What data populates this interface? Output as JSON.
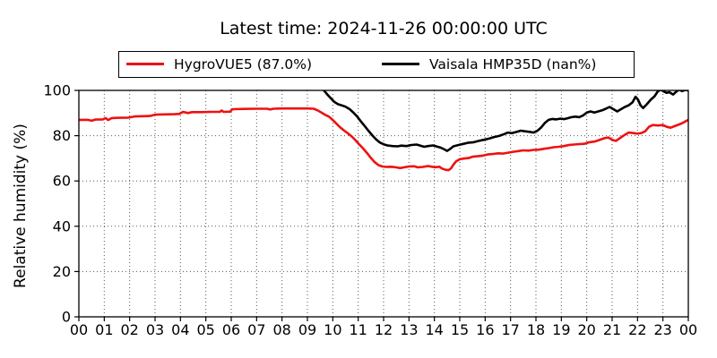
{
  "title": "Latest time: 2024-11-26 00:00:00 UTC",
  "legend": {
    "items": [
      {
        "label": "HygroVUE5 (87.0%)",
        "color": "#ee1111"
      },
      {
        "label": "Vaisala HMP35D (nan%)",
        "color": "#000000"
      }
    ]
  },
  "chart_data": {
    "type": "line",
    "title": "Latest time: 2024-11-26 00:00:00 UTC",
    "xlabel": "",
    "ylabel": "Relative humidity (%)",
    "xlim": [
      0,
      24
    ],
    "ylim": [
      0,
      100
    ],
    "grid": true,
    "legend_position": "top-center",
    "x_tick_hours": [
      0,
      1,
      2,
      3,
      4,
      5,
      6,
      7,
      8,
      9,
      10,
      11,
      12,
      13,
      14,
      15,
      16,
      17,
      18,
      19,
      20,
      21,
      22,
      23,
      24
    ],
    "x_tick_labels": [
      "00",
      "01",
      "02",
      "03",
      "04",
      "05",
      "06",
      "07",
      "08",
      "09",
      "10",
      "11",
      "12",
      "13",
      "14",
      "15",
      "16",
      "17",
      "18",
      "19",
      "20",
      "21",
      "22",
      "23",
      "00"
    ],
    "y_ticks": [
      0,
      20,
      40,
      60,
      80,
      100
    ],
    "series": [
      {
        "name": "HygroVUE5 (87.0%)",
        "color": "#ee1111",
        "latest_value": "87.0%",
        "points": [
          [
            0,
            87.0
          ],
          [
            0.35,
            87.0
          ],
          [
            0.5,
            86.6
          ],
          [
            0.65,
            87.1
          ],
          [
            0.95,
            87.2
          ],
          [
            1.05,
            87.8
          ],
          [
            1.15,
            86.9
          ],
          [
            1.3,
            87.8
          ],
          [
            1.6,
            87.9
          ],
          [
            1.95,
            88.0
          ],
          [
            2.2,
            88.5
          ],
          [
            2.55,
            88.6
          ],
          [
            2.8,
            88.7
          ],
          [
            3.0,
            89.3
          ],
          [
            3.4,
            89.4
          ],
          [
            3.75,
            89.5
          ],
          [
            3.95,
            89.6
          ],
          [
            4.1,
            90.5
          ],
          [
            4.3,
            90.0
          ],
          [
            4.45,
            90.4
          ],
          [
            4.8,
            90.4
          ],
          [
            5.2,
            90.5
          ],
          [
            5.55,
            90.5
          ],
          [
            5.62,
            91.1
          ],
          [
            5.7,
            90.5
          ],
          [
            5.95,
            90.6
          ],
          [
            6.05,
            91.7
          ],
          [
            6.5,
            91.8
          ],
          [
            6.95,
            91.9
          ],
          [
            7.4,
            91.9
          ],
          [
            7.55,
            91.6
          ],
          [
            7.65,
            91.9
          ],
          [
            8.0,
            92.0
          ],
          [
            8.5,
            92.0
          ],
          [
            9.0,
            92.0
          ],
          [
            9.25,
            91.9
          ],
          [
            9.4,
            91.2
          ],
          [
            9.55,
            90.2
          ],
          [
            9.7,
            89.2
          ],
          [
            9.85,
            88.4
          ],
          [
            10.0,
            86.9
          ],
          [
            10.15,
            85.2
          ],
          [
            10.3,
            83.6
          ],
          [
            10.45,
            82.2
          ],
          [
            10.6,
            81.0
          ],
          [
            10.75,
            79.6
          ],
          [
            10.9,
            77.9
          ],
          [
            11.05,
            76.0
          ],
          [
            11.2,
            74.3
          ],
          [
            11.35,
            72.3
          ],
          [
            11.5,
            70.2
          ],
          [
            11.65,
            68.3
          ],
          [
            11.8,
            67.0
          ],
          [
            11.95,
            66.4
          ],
          [
            12.1,
            66.2
          ],
          [
            12.3,
            66.3
          ],
          [
            12.5,
            66.0
          ],
          [
            12.65,
            65.7
          ],
          [
            12.8,
            66.0
          ],
          [
            13.0,
            66.4
          ],
          [
            13.2,
            66.5
          ],
          [
            13.35,
            66.0
          ],
          [
            13.55,
            66.2
          ],
          [
            13.75,
            66.6
          ],
          [
            13.9,
            66.3
          ],
          [
            14.05,
            66.1
          ],
          [
            14.2,
            66.3
          ],
          [
            14.3,
            65.5
          ],
          [
            14.45,
            64.9
          ],
          [
            14.55,
            64.8
          ],
          [
            14.65,
            65.5
          ],
          [
            14.75,
            67.2
          ],
          [
            14.85,
            68.6
          ],
          [
            15.0,
            69.6
          ],
          [
            15.15,
            69.9
          ],
          [
            15.35,
            70.1
          ],
          [
            15.5,
            70.7
          ],
          [
            15.7,
            70.9
          ],
          [
            15.9,
            71.2
          ],
          [
            16.1,
            71.7
          ],
          [
            16.3,
            71.9
          ],
          [
            16.5,
            72.2
          ],
          [
            16.7,
            72.1
          ],
          [
            16.9,
            72.5
          ],
          [
            17.1,
            72.9
          ],
          [
            17.3,
            73.2
          ],
          [
            17.5,
            73.5
          ],
          [
            17.7,
            73.4
          ],
          [
            17.9,
            73.7
          ],
          [
            18.1,
            73.8
          ],
          [
            18.3,
            74.2
          ],
          [
            18.5,
            74.5
          ],
          [
            18.7,
            74.9
          ],
          [
            18.9,
            75.1
          ],
          [
            19.1,
            75.4
          ],
          [
            19.3,
            75.9
          ],
          [
            19.5,
            76.1
          ],
          [
            19.7,
            76.3
          ],
          [
            19.9,
            76.4
          ],
          [
            20.1,
            77.1
          ],
          [
            20.3,
            77.4
          ],
          [
            20.5,
            78.1
          ],
          [
            20.7,
            78.9
          ],
          [
            20.85,
            79.2
          ],
          [
            21.0,
            78.2
          ],
          [
            21.15,
            77.7
          ],
          [
            21.3,
            78.9
          ],
          [
            21.5,
            80.4
          ],
          [
            21.65,
            81.4
          ],
          [
            21.8,
            81.2
          ],
          [
            22.0,
            80.9
          ],
          [
            22.15,
            81.2
          ],
          [
            22.3,
            81.9
          ],
          [
            22.45,
            83.9
          ],
          [
            22.6,
            84.7
          ],
          [
            22.8,
            84.5
          ],
          [
            23.0,
            84.7
          ],
          [
            23.15,
            83.9
          ],
          [
            23.3,
            83.5
          ],
          [
            23.5,
            84.4
          ],
          [
            23.7,
            85.2
          ],
          [
            23.85,
            86.1
          ],
          [
            24,
            87.0
          ]
        ]
      },
      {
        "name": "Vaisala HMP35D (nan%)",
        "color": "#000000",
        "latest_value": "nan%",
        "points": [
          [
            9.5,
            101.5
          ],
          [
            9.65,
            100.0
          ],
          [
            9.8,
            98.0
          ],
          [
            9.95,
            96.2
          ],
          [
            10.05,
            95.0
          ],
          [
            10.2,
            93.9
          ],
          [
            10.35,
            93.4
          ],
          [
            10.5,
            92.8
          ],
          [
            10.65,
            91.8
          ],
          [
            10.8,
            90.3
          ],
          [
            10.95,
            88.6
          ],
          [
            11.1,
            86.4
          ],
          [
            11.25,
            84.3
          ],
          [
            11.4,
            82.2
          ],
          [
            11.55,
            80.2
          ],
          [
            11.7,
            78.4
          ],
          [
            11.85,
            77.0
          ],
          [
            12.0,
            76.2
          ],
          [
            12.15,
            75.7
          ],
          [
            12.35,
            75.4
          ],
          [
            12.55,
            75.3
          ],
          [
            12.7,
            75.6
          ],
          [
            12.9,
            75.4
          ],
          [
            13.1,
            75.9
          ],
          [
            13.3,
            76.1
          ],
          [
            13.45,
            75.6
          ],
          [
            13.6,
            75.1
          ],
          [
            13.75,
            75.4
          ],
          [
            13.95,
            75.7
          ],
          [
            14.1,
            75.2
          ],
          [
            14.25,
            74.7
          ],
          [
            14.4,
            73.9
          ],
          [
            14.5,
            73.3
          ],
          [
            14.6,
            74.0
          ],
          [
            14.75,
            75.3
          ],
          [
            14.95,
            75.9
          ],
          [
            15.15,
            76.4
          ],
          [
            15.35,
            76.9
          ],
          [
            15.55,
            77.1
          ],
          [
            15.75,
            77.7
          ],
          [
            15.95,
            78.2
          ],
          [
            16.15,
            78.7
          ],
          [
            16.35,
            79.4
          ],
          [
            16.55,
            79.9
          ],
          [
            16.75,
            80.7
          ],
          [
            16.9,
            81.4
          ],
          [
            17.05,
            81.1
          ],
          [
            17.25,
            81.7
          ],
          [
            17.4,
            82.2
          ],
          [
            17.6,
            81.9
          ],
          [
            17.75,
            81.7
          ],
          [
            17.9,
            81.4
          ],
          [
            18.05,
            82.1
          ],
          [
            18.2,
            83.6
          ],
          [
            18.35,
            85.6
          ],
          [
            18.5,
            87.0
          ],
          [
            18.65,
            87.4
          ],
          [
            18.8,
            87.2
          ],
          [
            18.95,
            87.5
          ],
          [
            19.1,
            87.3
          ],
          [
            19.25,
            87.7
          ],
          [
            19.4,
            88.2
          ],
          [
            19.55,
            88.4
          ],
          [
            19.7,
            88.2
          ],
          [
            19.85,
            88.9
          ],
          [
            20.0,
            90.2
          ],
          [
            20.15,
            90.7
          ],
          [
            20.3,
            90.2
          ],
          [
            20.45,
            90.7
          ],
          [
            20.6,
            91.2
          ],
          [
            20.75,
            91.9
          ],
          [
            20.9,
            92.7
          ],
          [
            21.05,
            91.7
          ],
          [
            21.2,
            90.7
          ],
          [
            21.35,
            91.7
          ],
          [
            21.5,
            92.7
          ],
          [
            21.65,
            93.4
          ],
          [
            21.8,
            94.7
          ],
          [
            21.92,
            97.2
          ],
          [
            22.02,
            95.9
          ],
          [
            22.12,
            93.4
          ],
          [
            22.22,
            92.2
          ],
          [
            22.37,
            93.9
          ],
          [
            22.52,
            95.9
          ],
          [
            22.67,
            97.4
          ],
          [
            22.8,
            99.6
          ],
          [
            22.92,
            100.3
          ],
          [
            23.05,
            99.4
          ],
          [
            23.15,
            98.9
          ],
          [
            23.25,
            99.2
          ],
          [
            23.4,
            98.2
          ],
          [
            23.55,
            99.7
          ],
          [
            23.65,
            100.3
          ],
          [
            23.75,
            99.7
          ],
          [
            23.88,
            100.2
          ],
          [
            24,
            100.0
          ]
        ]
      }
    ]
  },
  "colors": {
    "axis": "#000000",
    "grid": "#555555",
    "background": "#ffffff"
  }
}
